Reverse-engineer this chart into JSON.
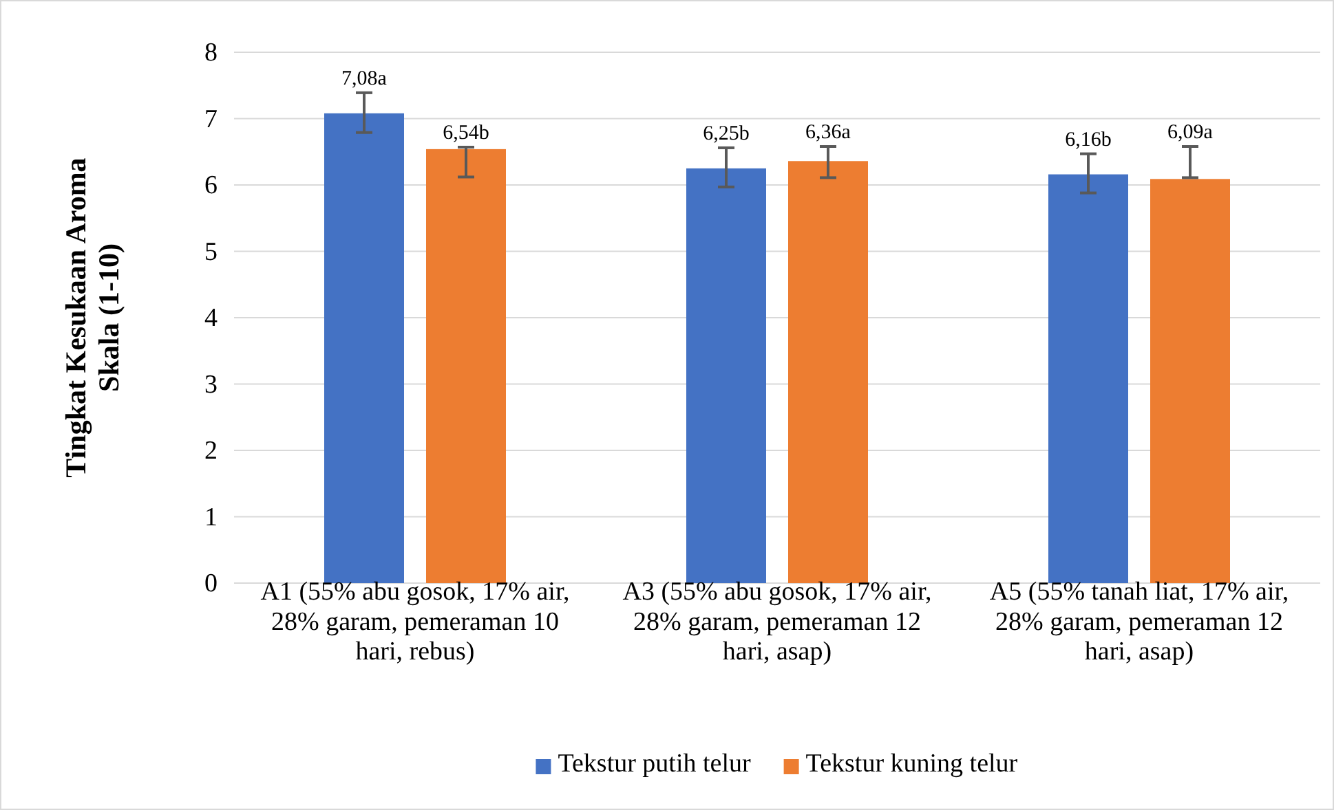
{
  "chart_data": {
    "type": "bar",
    "ylabel": "Tingkat Kesukaan Aroma Skala (1-10)",
    "categories": [
      "A1 (55% abu gosok, 17% air, 28% garam, pemeraman 10 hari, rebus)",
      "A3 (55% abu gosok, 17% air, 28% garam, pemeraman 12 hari, asap)",
      "A5 (55% tanah liat, 17% air, 28% garam, pemeraman 12 hari, asap)"
    ],
    "series": [
      {
        "name": "Tekstur putih telur",
        "color": "#4472c4",
        "values": [
          7.08,
          6.25,
          6.16
        ],
        "value_labels": [
          "7,08a",
          "6,25b",
          "6,16b"
        ],
        "errors": [
          [
            6.79,
            7.39
          ],
          [
            5.97,
            6.56
          ],
          [
            5.88,
            6.47
          ]
        ]
      },
      {
        "name": "Tekstur kuning telur",
        "color": "#ed7d31",
        "values": [
          6.54,
          6.36,
          6.09
        ],
        "value_labels": [
          "6,54b",
          "6,36a",
          "6,09a"
        ],
        "errors": [
          [
            6.12,
            6.57
          ],
          [
            6.11,
            6.58
          ],
          [
            6.11,
            6.58
          ]
        ]
      }
    ],
    "ylim": [
      0,
      8
    ],
    "yticks": [
      0,
      1,
      2,
      3,
      4,
      5,
      6,
      7,
      8
    ],
    "grid": "y",
    "legend": "bottom"
  }
}
